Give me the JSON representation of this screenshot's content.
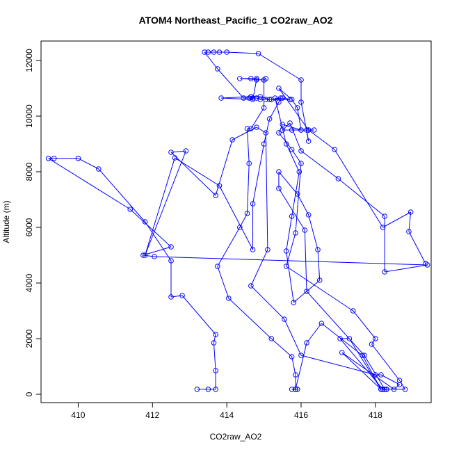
{
  "chart_data": {
    "type": "line",
    "title": "ATOM4 Northeast_Pacific_1 CO2raw_AO2",
    "xlabel": "CO2raw_AO2",
    "ylabel": "Altitude (m)",
    "xlim": [
      409,
      419.5
    ],
    "ylim": [
      -300,
      12700
    ],
    "xticks": [
      410,
      412,
      414,
      416,
      418
    ],
    "yticks": [
      0,
      2000,
      4000,
      6000,
      8000,
      10000,
      12000
    ],
    "grid": false,
    "series": [
      {
        "color": "#0000ff",
        "points": [
          [
            413.2,
            180
          ],
          [
            413.5,
            180
          ],
          [
            413.7,
            180
          ],
          [
            413.7,
            850
          ],
          [
            413.65,
            1850
          ],
          [
            413.7,
            2150
          ],
          [
            412.8,
            3550
          ],
          [
            412.5,
            3500
          ],
          [
            412.5,
            4800
          ],
          [
            411.8,
            6200
          ],
          [
            410.55,
            8100
          ],
          [
            410.0,
            8480
          ],
          [
            409.35,
            8480
          ],
          [
            409.2,
            8480
          ],
          [
            411.4,
            6650
          ],
          [
            412.5,
            5300
          ],
          [
            411.75,
            5000
          ],
          [
            412.05,
            4950
          ],
          [
            419.4,
            4650
          ],
          [
            418.25,
            4400
          ],
          [
            418.25,
            6400
          ],
          [
            417.0,
            7750
          ],
          [
            416.0,
            8750
          ],
          [
            415.7,
            9750
          ],
          [
            415.5,
            9500
          ],
          [
            415.75,
            9500
          ],
          [
            416.0,
            9500
          ],
          [
            416.2,
            9500
          ],
          [
            416.35,
            9500
          ],
          [
            416.15,
            9500
          ],
          [
            416.2,
            9100
          ],
          [
            416.0,
            10500
          ],
          [
            416.0,
            11300
          ],
          [
            414.85,
            12250
          ],
          [
            414.0,
            12300
          ],
          [
            413.8,
            12300
          ],
          [
            413.65,
            12300
          ],
          [
            413.5,
            12300
          ],
          [
            413.4,
            12300
          ],
          [
            413.75,
            11700
          ],
          [
            414.45,
            10650
          ],
          [
            414.6,
            10650
          ],
          [
            414.7,
            10650
          ],
          [
            414.8,
            10650
          ],
          [
            414.9,
            10600
          ],
          [
            415.05,
            10600
          ],
          [
            415.2,
            10600
          ],
          [
            415.5,
            10650
          ],
          [
            415.7,
            10600
          ],
          [
            415.15,
            10600
          ],
          [
            414.9,
            10700
          ],
          [
            414.65,
            10700
          ],
          [
            413.85,
            10650
          ],
          [
            414.7,
            10600
          ],
          [
            414.8,
            11300
          ],
          [
            414.8,
            11350
          ],
          [
            414.65,
            11350
          ],
          [
            414.35,
            11350
          ],
          [
            415.0,
            11300
          ],
          [
            415.05,
            11350
          ],
          [
            415.0,
            11300
          ],
          [
            415.0,
            10300
          ],
          [
            414.65,
            9550
          ],
          [
            414.55,
            9550
          ],
          [
            414.6,
            8300
          ],
          [
            414.55,
            6500
          ],
          [
            414.35,
            6000
          ],
          [
            413.75,
            4600
          ],
          [
            414.05,
            3450
          ],
          [
            415.2,
            2000
          ],
          [
            415.75,
            1350
          ],
          [
            415.85,
            700
          ],
          [
            415.85,
            180
          ],
          [
            415.9,
            180
          ],
          [
            415.75,
            180
          ],
          [
            415.85,
            180
          ],
          [
            416.15,
            1850
          ],
          [
            416.55,
            2550
          ],
          [
            417.65,
            1400
          ],
          [
            418.15,
            180
          ],
          [
            418.25,
            180
          ],
          [
            418.3,
            180
          ],
          [
            418.2,
            180
          ],
          [
            417.05,
            2000
          ],
          [
            417.3,
            2000
          ],
          [
            418.15,
            180
          ],
          [
            417.1,
            1500
          ],
          [
            418.5,
            180
          ],
          [
            418.65,
            350
          ],
          [
            418.15,
            700
          ],
          [
            418.0,
            700
          ],
          [
            416.0,
            1400
          ],
          [
            415.55,
            2700
          ],
          [
            414.65,
            3900
          ],
          [
            415.1,
            5200
          ],
          [
            415.05,
            9400
          ],
          [
            414.8,
            9600
          ],
          [
            414.15,
            9150
          ],
          [
            413.7,
            7150
          ],
          [
            412.5,
            8700
          ],
          [
            412.9,
            8750
          ],
          [
            411.8,
            5000
          ],
          [
            412.6,
            8500
          ],
          [
            413.8,
            7500
          ],
          [
            414.7,
            5200
          ],
          [
            414.7,
            6850
          ],
          [
            415.0,
            9000
          ],
          [
            415.15,
            9900
          ],
          [
            415.4,
            10500
          ],
          [
            415.45,
            10650
          ],
          [
            415.3,
            10650
          ],
          [
            415.6,
            9000
          ],
          [
            415.95,
            8000
          ],
          [
            415.75,
            6400
          ],
          [
            415.6,
            5150
          ],
          [
            415.8,
            3300
          ],
          [
            416.5,
            4100
          ],
          [
            416.45,
            5200
          ],
          [
            416.2,
            6450
          ],
          [
            415.9,
            7200
          ],
          [
            415.4,
            8000
          ],
          [
            415.4,
            7400
          ],
          [
            416.1,
            5900
          ],
          [
            416.15,
            3700
          ],
          [
            417.7,
            1400
          ],
          [
            418.25,
            180
          ],
          [
            418.3,
            180
          ],
          [
            418.8,
            180
          ],
          [
            418.65,
            500
          ],
          [
            417.9,
            1800
          ],
          [
            418.0,
            2000
          ],
          [
            417.4,
            3000
          ],
          [
            415.6,
            4600
          ],
          [
            415.85,
            5800
          ],
          [
            416.0,
            8300
          ],
          [
            415.75,
            8800
          ],
          [
            415.4,
            9400
          ],
          [
            415.5,
            9700
          ],
          [
            416.0,
            9500
          ],
          [
            415.9,
            10300
          ],
          [
            415.75,
            10600
          ],
          [
            415.4,
            11000
          ],
          [
            416.2,
            9500
          ],
          [
            416.9,
            8800
          ],
          [
            418.2,
            6000
          ],
          [
            418.95,
            6550
          ],
          [
            418.9,
            5850
          ],
          [
            419.35,
            4700
          ]
        ]
      }
    ]
  }
}
